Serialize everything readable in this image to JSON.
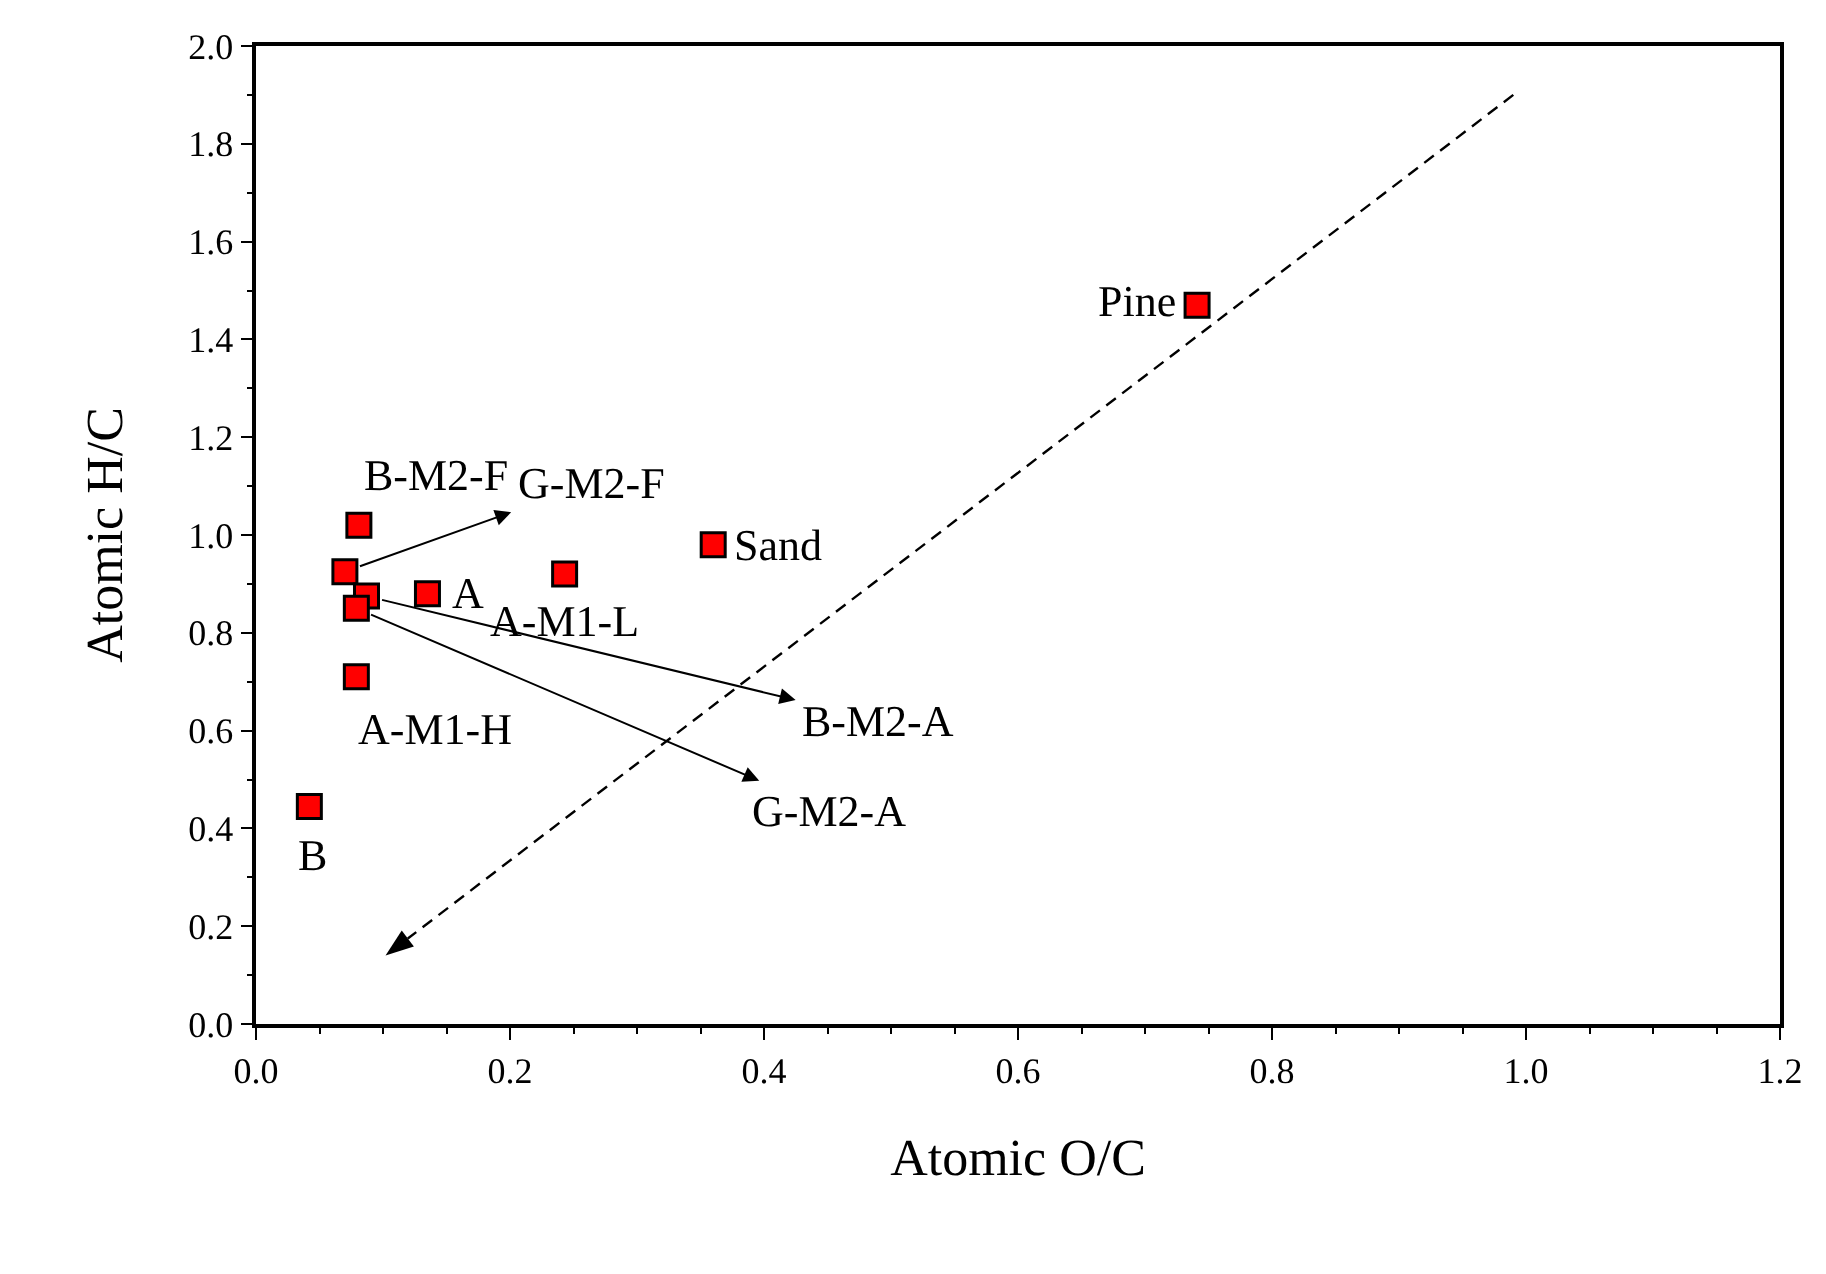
{
  "chart_data": {
    "type": "scatter",
    "xlabel": "Atomic O/C",
    "ylabel": "Atomic H/C",
    "xlim": [
      0,
      1.2
    ],
    "ylim": [
      0,
      2
    ],
    "xticks": [
      {
        "value": 0,
        "label": "0.0"
      },
      0.2,
      0.4,
      0.6,
      0.8,
      {
        "value": 1,
        "label": "1.0"
      },
      1.2
    ],
    "yticks": [
      {
        "value": 0,
        "label": "0.0"
      },
      0.2,
      0.4,
      0.6,
      0.8,
      {
        "value": 1,
        "label": "1.0"
      },
      1.2,
      1.4,
      1.6,
      1.8,
      {
        "value": 2,
        "label": "2.0"
      }
    ],
    "grid": false,
    "series": [
      {
        "color": "#ff0000",
        "marker": "square",
        "x": [
          0.081,
          0.07,
          0.135,
          0.243,
          0.36,
          0.079,
          0.042,
          0.741,
          0.087,
          0.079
        ],
        "values": [
          1.02,
          0.925,
          0.88,
          0.92,
          0.98,
          0.71,
          0.445,
          1.47,
          0.875,
          0.85
        ]
      }
    ],
    "annotations": [
      {
        "text": "B-M2-F",
        "x": 0.081,
        "y": 1.02
      },
      {
        "text": "G-M2-F",
        "x": 0.07,
        "y": 0.925
      },
      {
        "text": "A",
        "x": 0.135,
        "y": 0.88
      },
      {
        "text": "A-M1-L",
        "x": 0.243,
        "y": 0.92
      },
      {
        "text": "Sand",
        "x": 0.36,
        "y": 0.98
      },
      {
        "text": "A-M1-H",
        "x": 0.079,
        "y": 0.71
      },
      {
        "text": "B",
        "x": 0.042,
        "y": 0.445
      },
      {
        "text": "Pine",
        "x": 0.741,
        "y": 1.47
      },
      {
        "text": "B-M2-A",
        "x": 0.087,
        "y": 0.875
      },
      {
        "text": "G-M2-A",
        "x": 0.079,
        "y": 0.85
      }
    ]
  }
}
